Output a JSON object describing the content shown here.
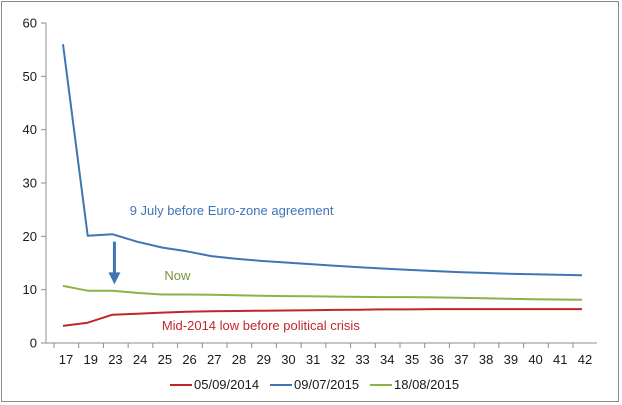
{
  "chart_data": {
    "type": "line",
    "title": "",
    "xlabel": "",
    "ylabel": "",
    "categories": [
      "17",
      "19",
      "23",
      "24",
      "25",
      "26",
      "27",
      "28",
      "29",
      "30",
      "31",
      "32",
      "33",
      "34",
      "35",
      "36",
      "37",
      "38",
      "39",
      "40",
      "41",
      "42"
    ],
    "ylim": [
      0,
      60
    ],
    "yticks": [
      0,
      10,
      20,
      30,
      40,
      50,
      60
    ],
    "grid": false,
    "legend_position": "bottom",
    "series": [
      {
        "name": "05/09/2014",
        "color": "#c0272d",
        "values": [
          3.2,
          3.8,
          5.3,
          5.5,
          5.7,
          5.85,
          5.95,
          6.0,
          6.05,
          6.1,
          6.15,
          6.2,
          6.25,
          6.3,
          6.3,
          6.35,
          6.35,
          6.35,
          6.35,
          6.35,
          6.35,
          6.35
        ]
      },
      {
        "name": "09/07/2015",
        "color": "#3f75b5",
        "values": [
          56.0,
          20.1,
          20.4,
          19.0,
          17.9,
          17.2,
          16.3,
          15.8,
          15.4,
          15.1,
          14.8,
          14.5,
          14.2,
          13.95,
          13.7,
          13.5,
          13.3,
          13.15,
          13.0,
          12.9,
          12.8,
          12.7
        ]
      },
      {
        "name": "18/08/2015",
        "color": "#8cb24a",
        "values": [
          10.7,
          9.8,
          9.8,
          9.4,
          9.1,
          9.1,
          9.05,
          8.95,
          8.85,
          8.8,
          8.75,
          8.7,
          8.65,
          8.6,
          8.6,
          8.55,
          8.5,
          8.4,
          8.3,
          8.2,
          8.15,
          8.1
        ]
      }
    ],
    "annotations": [
      {
        "text": "9 July before Euro-zone agreement",
        "x_index": 2.7,
        "y": 24.0,
        "color": "#3f75b5"
      },
      {
        "text": "Now",
        "x_index": 4.1,
        "y": 11.8,
        "color": "#77933c"
      },
      {
        "text": "Mid-2014 low before political crisis",
        "x_index": 4.0,
        "y": 2.4,
        "color": "#c0272d"
      }
    ],
    "arrow": {
      "x_index": 2.0,
      "y_from": 19.0,
      "y_to": 11.0,
      "color": "#3f75b5"
    }
  }
}
